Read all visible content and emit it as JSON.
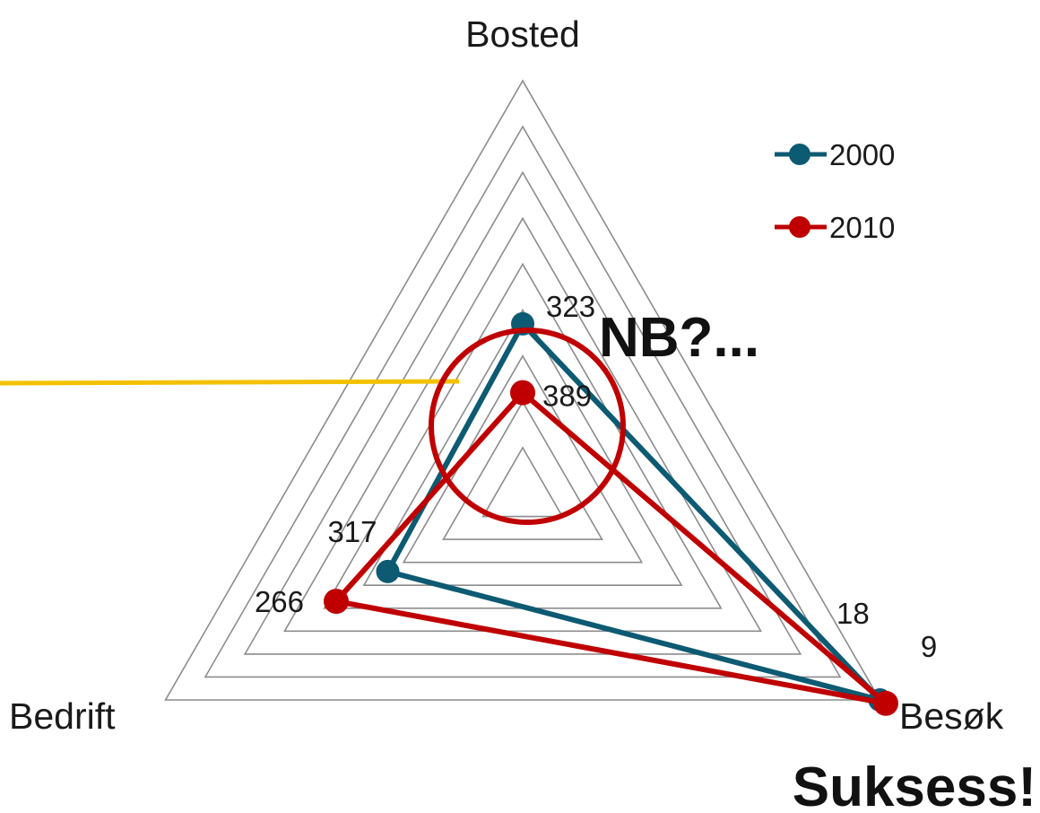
{
  "chart_data": {
    "type": "radar",
    "title": "",
    "axes": [
      "Bosted",
      "Bedrift",
      "Besøk"
    ],
    "rmax": 9,
    "grid_levels": 9,
    "series": [
      {
        "name": "2000",
        "color": "#0d5a73",
        "values": [
          3.7,
          3.4,
          9.0
        ],
        "labels": [
          "323",
          "317",
          "18"
        ]
      },
      {
        "name": "2010",
        "color": "#c00000",
        "values": [
          2.2,
          4.7,
          9.15
        ],
        "labels": [
          "389",
          "266",
          "9"
        ]
      }
    ],
    "legend_position": "top-right"
  },
  "annotations": {
    "question_text": "NB?...",
    "success_text": "Suksess!",
    "circle_color": "#c00000",
    "line_color": "#f2c200"
  }
}
